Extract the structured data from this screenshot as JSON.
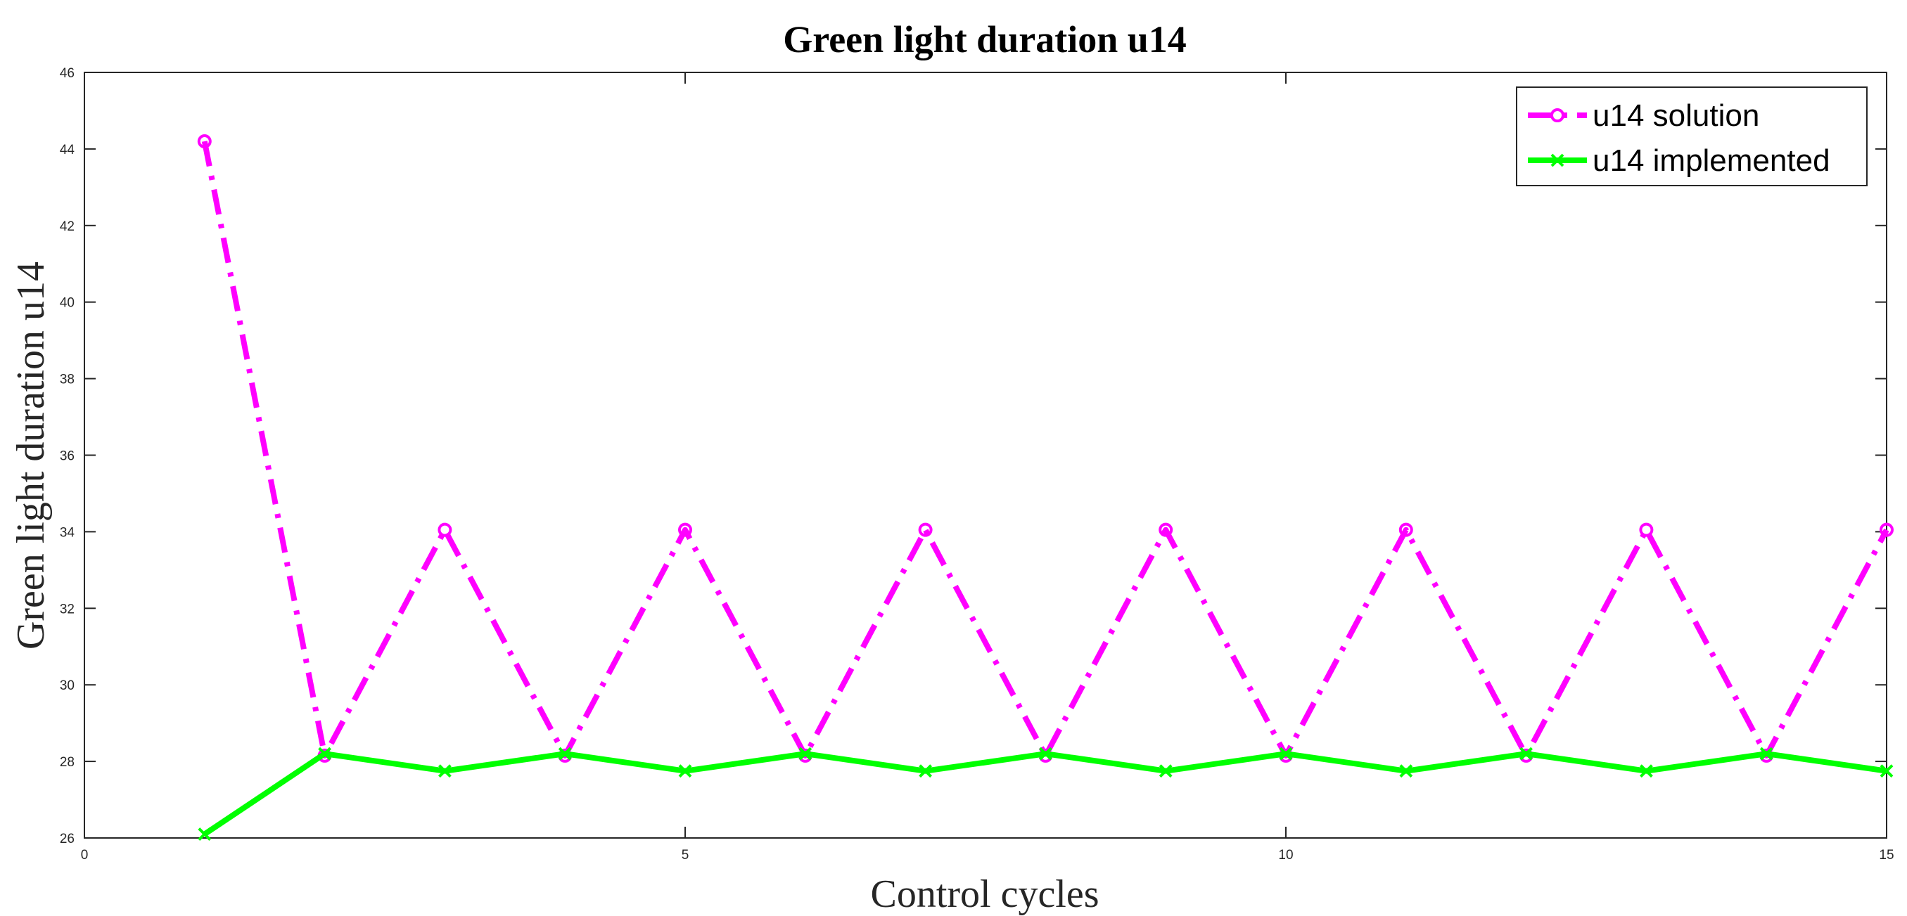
{
  "chart_data": {
    "type": "line",
    "title": "Green light duration u14",
    "xlabel": "Control cycles",
    "ylabel": "Green light duration u14",
    "xlim": [
      0,
      15
    ],
    "ylim": [
      26,
      46
    ],
    "xticks": [
      0,
      5,
      10,
      15
    ],
    "yticks": [
      26,
      28,
      30,
      32,
      34,
      36,
      38,
      40,
      42,
      44,
      46
    ],
    "legend_position": "top-right",
    "x": [
      1,
      2,
      3,
      4,
      5,
      6,
      7,
      8,
      9,
      10,
      11,
      12,
      13,
      14,
      15
    ],
    "series": [
      {
        "name": "u14 solution",
        "color": "#FF00FF",
        "line_style": "dash-dot",
        "marker": "circle",
        "values": [
          44.2,
          28.15,
          34.05,
          28.15,
          34.05,
          28.15,
          34.05,
          28.15,
          34.05,
          28.15,
          34.05,
          28.15,
          34.05,
          28.15,
          34.05
        ]
      },
      {
        "name": "u14 implemented",
        "color": "#00FF00",
        "line_style": "solid",
        "marker": "x",
        "values": [
          26.1,
          28.2,
          27.75,
          28.2,
          27.75,
          28.2,
          27.75,
          28.2,
          27.75,
          28.2,
          27.75,
          28.2,
          27.75,
          28.2,
          27.75
        ]
      }
    ]
  }
}
